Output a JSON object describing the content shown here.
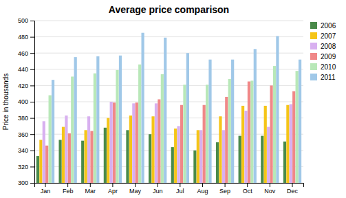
{
  "chart_data": {
    "type": "bar",
    "title": "Average price comparison",
    "ylabel": "Price in thousands",
    "categories": [
      "Jan",
      "Feb",
      "Mar",
      "Apr",
      "May",
      "Jun",
      "Jul",
      "Aug",
      "Sep",
      "Oct",
      "Nov",
      "Dec"
    ],
    "series": [
      {
        "name": "2006",
        "color": "#4a8a4a",
        "values": [
          333,
          353,
          352,
          368,
          365,
          360,
          344,
          340,
          350,
          358,
          358,
          351
        ]
      },
      {
        "name": "2007",
        "color": "#f5c518",
        "values": [
          353,
          369,
          365,
          380,
          383,
          382,
          367,
          365,
          382,
          395,
          395,
          396
        ]
      },
      {
        "name": "2008",
        "color": "#d8b0f0",
        "values": [
          376,
          383,
          382,
          400,
          398,
          398,
          370,
          365,
          365,
          389,
          369,
          397
        ]
      },
      {
        "name": "2009",
        "color": "#f08888",
        "values": [
          346,
          361,
          364,
          399,
          399,
          403,
          396,
          396,
          406,
          425,
          420,
          413
        ]
      },
      {
        "name": "2010",
        "color": "#b8e8b8",
        "values": [
          408,
          431,
          435,
          439,
          446,
          434,
          421,
          421,
          428,
          426,
          444,
          438
        ]
      },
      {
        "name": "2011",
        "color": "#a0c8e8",
        "values": [
          427,
          455,
          456,
          457,
          485,
          479,
          460,
          452,
          452,
          465,
          481,
          452
        ]
      }
    ],
    "ylim": [
      300,
      500
    ],
    "yticks": [
      300,
      320,
      340,
      360,
      380,
      400,
      420,
      440,
      460,
      480,
      500
    ],
    "grid": true,
    "legend": "upper right"
  }
}
